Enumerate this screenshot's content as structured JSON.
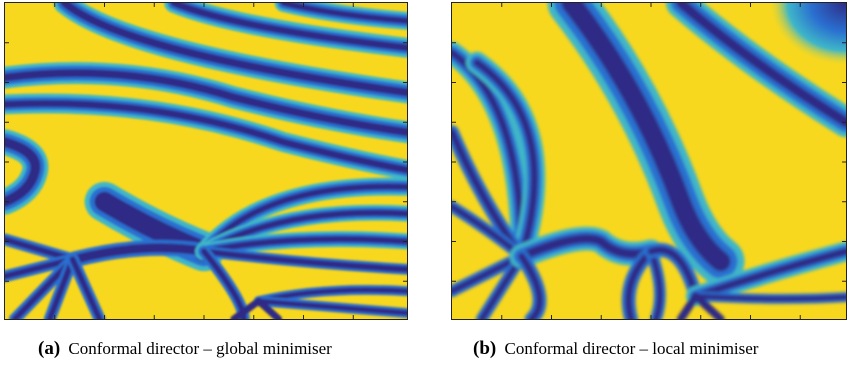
{
  "figure": {
    "panels": [
      {
        "label": "(a)",
        "caption": "Conformal director – global minimiser"
      },
      {
        "label": "(b)",
        "caption": "Conformal director – local minimiser"
      }
    ]
  },
  "colors": {
    "background": "#f8d81e",
    "stripe_dark": "#2e2c86",
    "stripe_mid": "#2a6fd0",
    "stripe_light": "#3fb6c8",
    "frame": "#222222"
  }
}
